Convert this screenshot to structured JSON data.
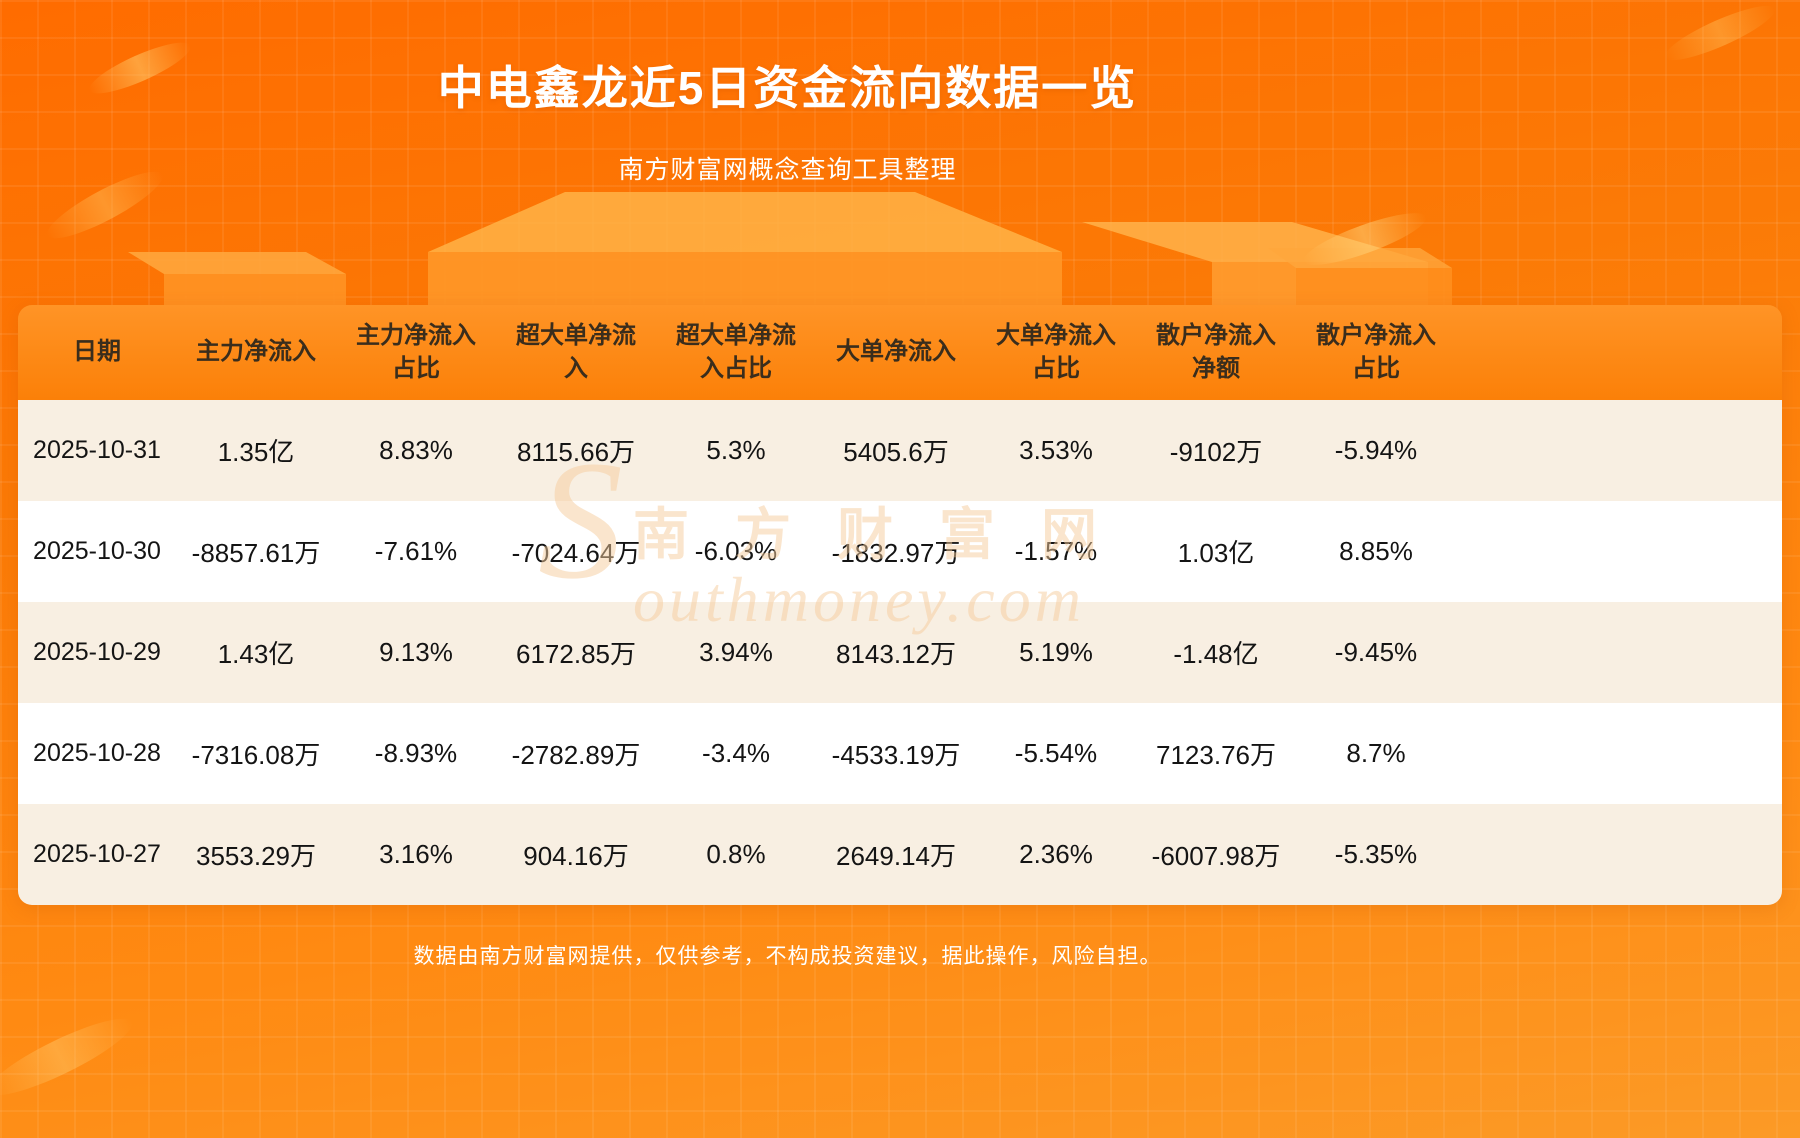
{
  "page": {
    "title": "中电鑫龙近5日资金流向数据一览",
    "subtitle": "南方财富网概念查询工具整理",
    "footer": "数据由南方财富网提供，仅供参考，不构成投资建议，据此操作，风险自担。",
    "watermark": {
      "initial": "S",
      "cn": "南方财富网",
      "en": "outhmoney.com"
    }
  },
  "colors": {
    "background_top": "#ff6c00",
    "background_bottom": "#fc9a26",
    "header_band": "#fb8008",
    "row_odd": "#f8efe2",
    "row_even": "#ffffff",
    "title_text": "#ffffff",
    "table_text": "#141414",
    "header_text": "#3a2d1c"
  },
  "chart_data": {
    "type": "table",
    "title": "中电鑫龙近5日资金流向数据一览",
    "columns": [
      "日期",
      "主力净流入",
      "主力净流入占比",
      "超大单净流入",
      "超大单净流入占比",
      "大单净流入",
      "大单净流入占比",
      "散户净流入净额",
      "散户净流入占比"
    ],
    "rows": [
      [
        "2025-10-31",
        "1.35亿",
        "8.83%",
        "8115.66万",
        "5.3%",
        "5405.6万",
        "3.53%",
        "-9102万",
        "-5.94%"
      ],
      [
        "2025-10-30",
        "-8857.61万",
        "-7.61%",
        "-7024.64万",
        "-6.03%",
        "-1832.97万",
        "-1.57%",
        "1.03亿",
        "8.85%"
      ],
      [
        "2025-10-29",
        "1.43亿",
        "9.13%",
        "6172.85万",
        "3.94%",
        "8143.12万",
        "5.19%",
        "-1.48亿",
        "-9.45%"
      ],
      [
        "2025-10-28",
        "-7316.08万",
        "-8.93%",
        "-2782.89万",
        "-3.4%",
        "-4533.19万",
        "-5.54%",
        "7123.76万",
        "8.7%"
      ],
      [
        "2025-10-27",
        "3553.29万",
        "3.16%",
        "904.16万",
        "0.8%",
        "2649.14万",
        "2.36%",
        "-6007.98万",
        "-5.35%"
      ]
    ]
  }
}
